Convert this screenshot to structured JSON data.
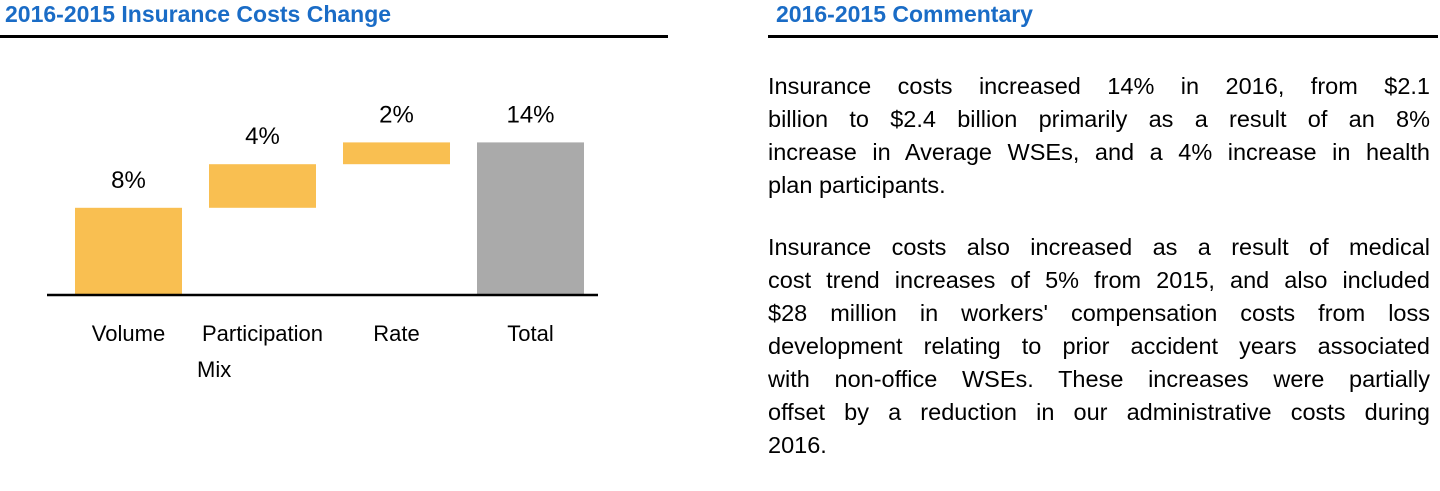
{
  "left_panel": {
    "title": "2016-2015 Insurance Costs Change"
  },
  "right_panel": {
    "title": "2016-2015 Commentary",
    "paragraphs": [
      [
        "Insurance costs increased 14% in 2016, from $2.1",
        "billion to $2.4 billion primarily as a result of an 8%",
        "increase in Average WSEs, and a 4% increase in health",
        "plan participants."
      ],
      [
        "Insurance costs also increased as a result of medical",
        "cost trend increases of 5% from 2015, and also included",
        "$28 million in workers' compensation costs from loss",
        "development relating to prior accident years associated",
        "with non-office WSEs. These increases were partially",
        "offset by a reduction in our administrative costs during",
        "2016."
      ]
    ]
  },
  "chart_data": {
    "type": "bar",
    "subtype": "waterfall",
    "categories": [
      [
        "Volume"
      ],
      [
        "Participation",
        "Mix"
      ],
      [
        "Rate"
      ],
      [
        "Total"
      ]
    ],
    "values": [
      8,
      4,
      2,
      14
    ],
    "value_labels": [
      "8%",
      "4%",
      "2%",
      "14%"
    ],
    "is_total": [
      false,
      false,
      false,
      true
    ],
    "ylim": [
      0,
      14
    ],
    "grid": false,
    "colors": {
      "increment": "#f9bf51",
      "total": "#aaaaaa"
    }
  }
}
